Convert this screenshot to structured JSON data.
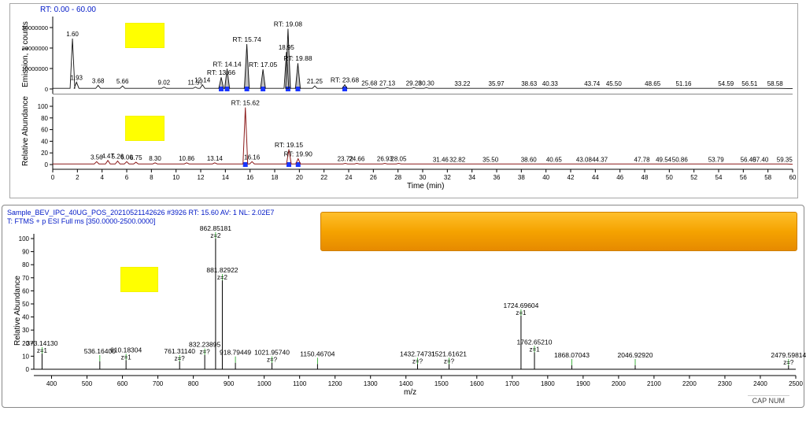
{
  "rt_range_label": "RT: 0.00 - 60.00",
  "chrom_xaxis": {
    "label": "Time (min)",
    "min": 0,
    "max": 60,
    "tick_step": 2
  },
  "chrom1": {
    "ylabel": "Emission, 1 counts",
    "ylim": [
      0,
      34000000
    ],
    "ytick_labels": [
      "0",
      "10000000",
      "20000000",
      "30000000"
    ],
    "trace_color": "#111111",
    "fill_color": "#bfbfbf",
    "baseline_marker_color": "#1a36ff",
    "rt_labels": [
      {
        "x": 1.6,
        "txt": "1.60",
        "h": 0.82
      },
      {
        "x": 1.93,
        "txt": "1.93",
        "h": 0.11
      },
      {
        "x": 3.68,
        "txt": "3.68",
        "h": 0.06
      },
      {
        "x": 5.66,
        "txt": "5.66",
        "h": 0.05
      },
      {
        "x": 9.02,
        "txt": "9.02",
        "h": 0.03
      },
      {
        "x": 11.57,
        "txt": "11.57",
        "h": 0.03
      },
      {
        "x": 12.14,
        "txt": "12.14",
        "h": 0.07
      },
      {
        "x": 13.66,
        "txt": "RT: 13.66",
        "h": 0.19
      },
      {
        "x": 14.14,
        "txt": "RT: 14.14",
        "h": 0.33
      },
      {
        "x": 15.74,
        "txt": "RT: 15.74",
        "h": 0.73
      },
      {
        "x": 17.05,
        "txt": "RT: 17.05",
        "h": 0.32
      },
      {
        "x": 18.95,
        "txt": "18.95",
        "h": 0.6
      },
      {
        "x": 19.08,
        "txt": "RT: 19.08",
        "h": 0.98
      },
      {
        "x": 19.88,
        "txt": "RT: 19.88",
        "h": 0.42
      },
      {
        "x": 21.25,
        "txt": "21.25",
        "h": 0.05
      },
      {
        "x": 23.68,
        "txt": "RT: 23.68",
        "h": 0.07
      },
      {
        "x": 25.68,
        "txt": "25.68",
        "h": 0.02
      },
      {
        "x": 27.13,
        "txt": "27.13",
        "h": 0.02
      },
      {
        "x": 29.28,
        "txt": "29.28",
        "h": 0.02
      },
      {
        "x": 30.3,
        "txt": "30.30",
        "h": 0.02
      },
      {
        "x": 33.22,
        "txt": "33.22",
        "h": 0.01
      },
      {
        "x": 35.97,
        "txt": "35.97",
        "h": 0.01
      },
      {
        "x": 38.63,
        "txt": "38.63",
        "h": 0.01
      },
      {
        "x": 40.33,
        "txt": "40.33",
        "h": 0.01
      },
      {
        "x": 43.74,
        "txt": "43.74",
        "h": 0.01
      },
      {
        "x": 45.5,
        "txt": "45.50",
        "h": 0.01
      },
      {
        "x": 48.65,
        "txt": "48.65",
        "h": 0.01
      },
      {
        "x": 51.16,
        "txt": "51.16",
        "h": 0.01
      },
      {
        "x": 54.59,
        "txt": "54.59",
        "h": 0.01
      },
      {
        "x": 56.51,
        "txt": "56.51",
        "h": 0.01
      },
      {
        "x": 58.58,
        "txt": "58.58",
        "h": 0.01
      }
    ]
  },
  "chrom2": {
    "ylabel": "Relative Abundance",
    "ylim": [
      0,
      100
    ],
    "ytick_step": 20,
    "trace_color": "#8b1a1a",
    "baseline_marker_color": "#1a36ff",
    "rt_labels": [
      {
        "x": 3.56,
        "txt": "3.56",
        "h": 0.05
      },
      {
        "x": 4.47,
        "txt": "4.47",
        "h": 0.07
      },
      {
        "x": 5.26,
        "txt": "5.26",
        "h": 0.06
      },
      {
        "x": 6.0,
        "txt": "6.00",
        "h": 0.05
      },
      {
        "x": 6.75,
        "txt": "6.75",
        "h": 0.04
      },
      {
        "x": 8.3,
        "txt": "8.30",
        "h": 0.03
      },
      {
        "x": 10.86,
        "txt": "10.86",
        "h": 0.03
      },
      {
        "x": 13.14,
        "txt": "13.14",
        "h": 0.03
      },
      {
        "x": 15.62,
        "txt": "RT: 15.62",
        "h": 0.98
      },
      {
        "x": 16.16,
        "txt": "16.16",
        "h": 0.05
      },
      {
        "x": 19.15,
        "txt": "RT: 19.15",
        "h": 0.26
      },
      {
        "x": 19.9,
        "txt": "RT: 19.90",
        "h": 0.1
      },
      {
        "x": 23.72,
        "txt": "23.72",
        "h": 0.02
      },
      {
        "x": 24.66,
        "txt": "24.66",
        "h": 0.02
      },
      {
        "x": 26.93,
        "txt": "26.93",
        "h": 0.02
      },
      {
        "x": 28.05,
        "txt": "28.05",
        "h": 0.02
      },
      {
        "x": 31.46,
        "txt": "31.46",
        "h": 0.01
      },
      {
        "x": 32.82,
        "txt": "32.82",
        "h": 0.01
      },
      {
        "x": 35.5,
        "txt": "35.50",
        "h": 0.01
      },
      {
        "x": 38.6,
        "txt": "38.60",
        "h": 0.01
      },
      {
        "x": 40.65,
        "txt": "40.65",
        "h": 0.01
      },
      {
        "x": 43.08,
        "txt": "43.08",
        "h": 0.01
      },
      {
        "x": 44.37,
        "txt": "44.37",
        "h": 0.01
      },
      {
        "x": 47.78,
        "txt": "47.78",
        "h": 0.01
      },
      {
        "x": 49.54,
        "txt": "49.54",
        "h": 0.01
      },
      {
        "x": 50.86,
        "txt": "50.86",
        "h": 0.01
      },
      {
        "x": 53.79,
        "txt": "53.79",
        "h": 0.01
      },
      {
        "x": 56.4,
        "txt": "56.40",
        "h": 0.01
      },
      {
        "x": 57.4,
        "txt": "57.40",
        "h": 0.01
      },
      {
        "x": 59.35,
        "txt": "59.35",
        "h": 0.01
      }
    ]
  },
  "spectrum": {
    "header_line1": "Sample_BEV_IPC_40UG_POS_20210521142626 #3926  RT: 15.60  AV: 1  NL: 2.02E7",
    "header_line2": "T: FTMS + p ESI Full ms [350.0000-2500.0000]",
    "ylabel": "Relative Abundance",
    "xlabel": "m/z",
    "xlim": [
      350,
      2500
    ],
    "xtick_step": 100,
    "ylim": [
      0,
      100
    ],
    "ytick_step": 10,
    "stick_color": "#000000",
    "annot_leader_color": "#17a017",
    "peaks": [
      {
        "mz": 373.1413,
        "z": "z=1",
        "h": 12
      },
      {
        "mz": 536.164,
        "z": "",
        "h": 6
      },
      {
        "mz": 610.18304,
        "z": "z=1",
        "h": 7
      },
      {
        "mz": 761.3114,
        "z": "z=?",
        "h": 6
      },
      {
        "mz": 832.23895,
        "z": "z=?",
        "h": 11
      },
      {
        "mz": 862.85181,
        "z": "z=2",
        "h": 100
      },
      {
        "mz": 881.82922,
        "z": "z=2",
        "h": 68
      },
      {
        "mz": 918.79449,
        "z": "",
        "h": 5
      },
      {
        "mz": 1021.9574,
        "z": "z=?",
        "h": 5
      },
      {
        "mz": 1150.46704,
        "z": "",
        "h": 4
      },
      {
        "mz": 1432.74731,
        "z": "z=?",
        "h": 4
      },
      {
        "mz": 1521.61621,
        "z": "z=?",
        "h": 4
      },
      {
        "mz": 1724.69604,
        "z": "z=1",
        "h": 41
      },
      {
        "mz": 1762.6521,
        "z": "z=1",
        "h": 13
      },
      {
        "mz": 1868.07043,
        "z": "",
        "h": 3
      },
      {
        "mz": 2046.9292,
        "z": "",
        "h": 3
      },
      {
        "mz": 2479.59814,
        "z": "z=?",
        "h": 3
      }
    ]
  },
  "highlights": {
    "color": "#ffff00"
  },
  "status_text": "CAP  NUM"
}
